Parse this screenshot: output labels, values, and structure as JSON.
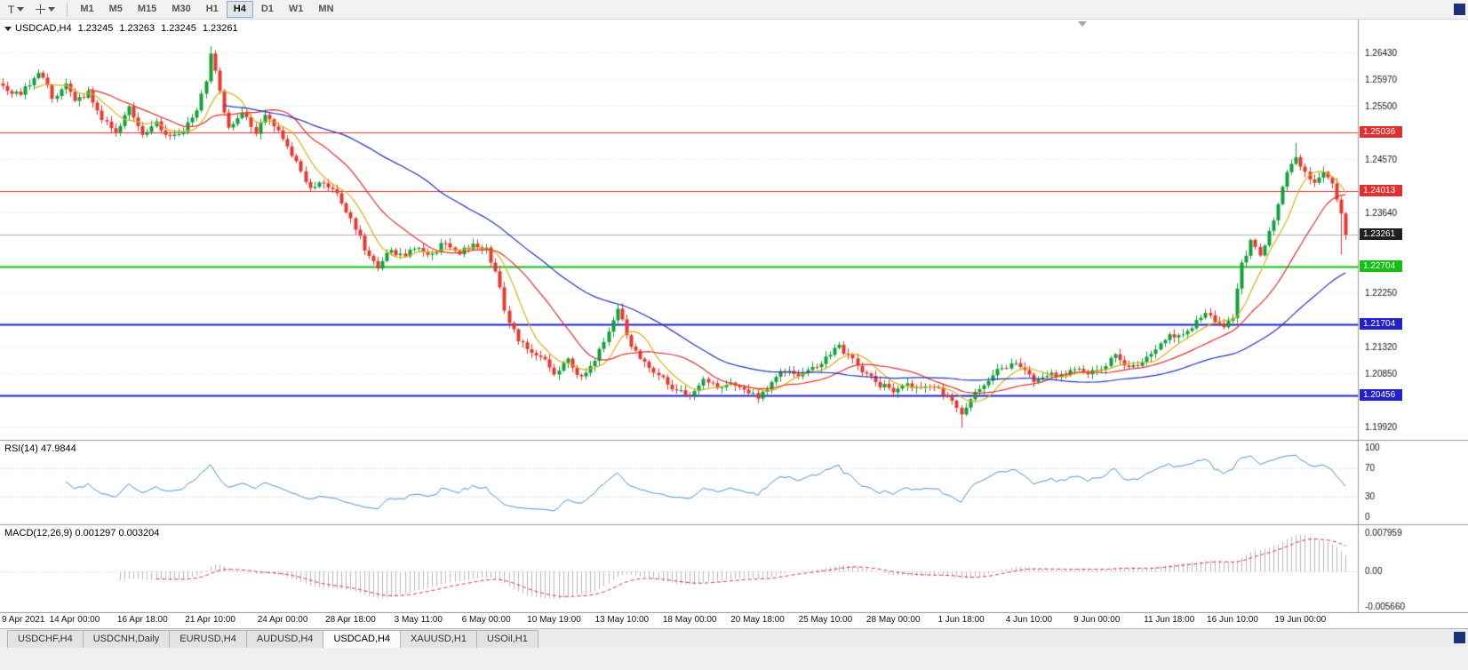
{
  "toolbar": {
    "text_tool_label": "T",
    "timeframes": [
      "M1",
      "M5",
      "M15",
      "M30",
      "H1",
      "H4",
      "D1",
      "W1",
      "MN"
    ],
    "active_timeframe": "H4"
  },
  "chart_header": {
    "symbol": "USDCAD,H4",
    "open": "1.23245",
    "high": "1.23263",
    "low": "1.23245",
    "close": "1.23261"
  },
  "chart_data": {
    "type": "candlestick",
    "symbol": "USDCAD",
    "timeframe": "H4",
    "title": "USDCAD,H4",
    "bars": 298,
    "bar_spacing": 5.09,
    "price_axis": {
      "range": [
        1.19689,
        1.27002
      ],
      "ticks": [
        {
          "value": 1.2643,
          "label": "1.26430"
        },
        {
          "value": 1.2597,
          "label": "1.25970"
        },
        {
          "value": 1.255,
          "label": "1.25500"
        },
        {
          "value": 1.2457,
          "label": "1.24570"
        },
        {
          "value": 1.2364,
          "label": "1.23640"
        },
        {
          "value": 1.2225,
          "label": "1.22250"
        },
        {
          "value": 1.2132,
          "label": "1.21320"
        },
        {
          "value": 1.2085,
          "label": "1.20850"
        },
        {
          "value": 1.1992,
          "label": "1.19920"
        }
      ]
    },
    "levels": [
      {
        "price": 1.25036,
        "label": "1.25036",
        "color": "#e23030",
        "width": 1
      },
      {
        "price": 1.24013,
        "label": "1.24013",
        "color": "#e23030",
        "width": 1
      },
      {
        "price": 1.22704,
        "label": "1.22704",
        "color": "#12c212",
        "width": 2
      },
      {
        "price": 1.21704,
        "label": "1.21704",
        "color": "#2222cc",
        "width": 2
      },
      {
        "price": 1.20456,
        "label": "1.20456",
        "color": "#2222cc",
        "width": 2
      }
    ],
    "current_price": {
      "value": 1.23261,
      "label": "1.23261",
      "color": "#1f1f1f"
    },
    "colors": {
      "up": "#12a13a",
      "down": "#e8392f",
      "grid": "#dcdcdc",
      "axis_text": "#111111",
      "current_line": "#b0b0b0"
    },
    "moving_averages": [
      {
        "period": 8,
        "color": "#d9b216"
      },
      {
        "period": 20,
        "color": "#e23030"
      },
      {
        "period": 50,
        "color": "#2233bb"
      }
    ],
    "waypoints": [
      [
        0,
        1.2585
      ],
      [
        4,
        1.2572
      ],
      [
        8,
        1.2606
      ],
      [
        11,
        1.2564
      ],
      [
        14,
        1.259
      ],
      [
        16,
        1.2556
      ],
      [
        19,
        1.2574
      ],
      [
        22,
        1.2532
      ],
      [
        25,
        1.2512
      ],
      [
        28,
        1.2544
      ],
      [
        31,
        1.2506
      ],
      [
        34,
        1.252
      ],
      [
        37,
        1.2496
      ],
      [
        40,
        1.2509
      ],
      [
        43,
        1.255
      ],
      [
        45,
        1.26
      ],
      [
        46,
        1.264
      ],
      [
        48,
        1.2574
      ],
      [
        50,
        1.2512
      ],
      [
        53,
        1.253
      ],
      [
        56,
        1.2506
      ],
      [
        58,
        1.2534
      ],
      [
        62,
        1.2498
      ],
      [
        65,
        1.2452
      ],
      [
        68,
        1.2406
      ],
      [
        71,
        1.242
      ],
      [
        74,
        1.2398
      ],
      [
        77,
        1.2352
      ],
      [
        80,
        1.2302
      ],
      [
        83,
        1.2274
      ],
      [
        86,
        1.2304
      ],
      [
        89,
        1.2288
      ],
      [
        92,
        1.2304
      ],
      [
        95,
        1.2288
      ],
      [
        98,
        1.2314
      ],
      [
        101,
        1.2292
      ],
      [
        104,
        1.231
      ],
      [
        107,
        1.2298
      ],
      [
        109,
        1.2256
      ],
      [
        111,
        1.2196
      ],
      [
        114,
        1.2142
      ],
      [
        117,
        1.2116
      ],
      [
        120,
        1.21
      ],
      [
        122,
        1.2084
      ],
      [
        125,
        1.2104
      ],
      [
        128,
        1.208
      ],
      [
        131,
        1.2114
      ],
      [
        134,
        1.2152
      ],
      [
        136,
        1.2192
      ],
      [
        138,
        1.2148
      ],
      [
        140,
        1.212
      ],
      [
        143,
        1.2088
      ],
      [
        146,
        1.2072
      ],
      [
        149,
        1.2052
      ],
      [
        152,
        1.2049
      ],
      [
        155,
        1.2068
      ],
      [
        158,
        1.2058
      ],
      [
        161,
        1.2073
      ],
      [
        164,
        1.2052
      ],
      [
        167,
        1.2043
      ],
      [
        170,
        1.2068
      ],
      [
        173,
        1.2089
      ],
      [
        176,
        1.2076
      ],
      [
        179,
        1.2093
      ],
      [
        182,
        1.2109
      ],
      [
        185,
        1.2129
      ],
      [
        188,
        1.2109
      ],
      [
        191,
        1.2086
      ],
      [
        194,
        1.2069
      ],
      [
        197,
        1.2059
      ],
      [
        200,
        1.2073
      ],
      [
        203,
        1.2053
      ],
      [
        206,
        1.2063
      ],
      [
        209,
        1.2046
      ],
      [
        212,
        1.2016
      ],
      [
        214,
        1.2038
      ],
      [
        217,
        1.2066
      ],
      [
        220,
        1.2088
      ],
      [
        223,
        1.2102
      ],
      [
        226,
        1.2091
      ],
      [
        228,
        1.2073
      ],
      [
        231,
        1.2086
      ],
      [
        234,
        1.2079
      ],
      [
        237,
        1.2096
      ],
      [
        240,
        1.2083
      ],
      [
        243,
        1.2099
      ],
      [
        246,
        1.2113
      ],
      [
        249,
        1.2097
      ],
      [
        252,
        1.2109
      ],
      [
        255,
        1.2123
      ],
      [
        258,
        1.2159
      ],
      [
        261,
        1.2149
      ],
      [
        264,
        1.2173
      ],
      [
        267,
        1.2189
      ],
      [
        270,
        1.2163
      ],
      [
        272,
        1.2179
      ],
      [
        274,
        1.2272
      ],
      [
        276,
        1.2312
      ],
      [
        278,
        1.229
      ],
      [
        280,
        1.2336
      ],
      [
        282,
        1.2379
      ],
      [
        284,
        1.2428
      ],
      [
        286,
        1.2465
      ],
      [
        288,
        1.244
      ],
      [
        290,
        1.2418
      ],
      [
        292,
        1.244
      ],
      [
        294,
        1.2408
      ],
      [
        295,
        1.239
      ],
      [
        296,
        1.236
      ],
      [
        297,
        1.23261
      ]
    ],
    "wick_events": [
      {
        "bar": 46,
        "high": 1.2654
      },
      {
        "bar": 136,
        "high": 1.2201
      },
      {
        "bar": 212,
        "low": 1.199
      },
      {
        "bar": 286,
        "high": 1.2486
      },
      {
        "bar": 296,
        "low": 1.2291
      }
    ],
    "x_axis": {
      "labels": [
        {
          "text": "9 Apr 2021",
          "bar": 1
        },
        {
          "text": "14 Apr 00:00",
          "bar": 16
        },
        {
          "text": "16 Apr 18:00",
          "bar": 31
        },
        {
          "text": "21 Apr 10:00",
          "bar": 46
        },
        {
          "text": "24 Apr 00:00",
          "bar": 62
        },
        {
          "text": "28 Apr 18:00",
          "bar": 77
        },
        {
          "text": "3 May 11:00",
          "bar": 92
        },
        {
          "text": "6 May 00:00",
          "bar": 107
        },
        {
          "text": "10 May 19:00",
          "bar": 122
        },
        {
          "text": "13 May 10:00",
          "bar": 137
        },
        {
          "text": "18 May 00:00",
          "bar": 152
        },
        {
          "text": "20 May 18:00",
          "bar": 167
        },
        {
          "text": "25 May 10:00",
          "bar": 182
        },
        {
          "text": "28 May 00:00",
          "bar": 197
        },
        {
          "text": "1 Jun 18:00",
          "bar": 212
        },
        {
          "text": "4 Jun 10:00",
          "bar": 227
        },
        {
          "text": "9 Jun 00:00",
          "bar": 242
        },
        {
          "text": "11 Jun 18:00",
          "bar": 258
        },
        {
          "text": "16 Jun 10:00",
          "bar": 272
        },
        {
          "text": "19 Jun 00:00",
          "bar": 287
        }
      ]
    },
    "rsi": {
      "name": "RSI(14)",
      "value": "47.9844",
      "period": 14,
      "levels": [
        70,
        30
      ],
      "axis_ticks": [
        {
          "value": 100,
          "label": "100"
        },
        {
          "value": 70,
          "label": "70"
        },
        {
          "value": 30,
          "label": "30"
        },
        {
          "value": 0,
          "label": "0"
        }
      ],
      "color": "#4f90d0"
    },
    "macd": {
      "name": "MACD(12,26,9)",
      "value": "0.001297",
      "signal_value": "0.003204",
      "fast": 12,
      "slow": 26,
      "signal_period": 9,
      "axis_ticks": [
        {
          "position": "top",
          "label": "0.007959"
        },
        {
          "position": "zero",
          "label": "0.00"
        },
        {
          "position": "bottom",
          "label": "-0.005660"
        }
      ],
      "histogram_color": "#b9b9b9",
      "signal_color": "#e23030"
    }
  },
  "tabs": {
    "items": [
      {
        "label": "USDCHF,H4"
      },
      {
        "label": "USDCNH,Daily"
      },
      {
        "label": "EURUSD,H4"
      },
      {
        "label": "AUDUSD,H4"
      },
      {
        "label": "USDCAD,H4"
      },
      {
        "label": "XAUUSD,H1"
      },
      {
        "label": "USOil,H1"
      }
    ],
    "active": "USDCAD,H4"
  }
}
